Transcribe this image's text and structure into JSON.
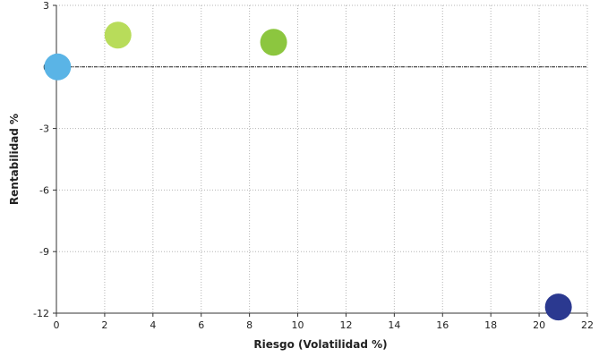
{
  "chart_data": {
    "type": "scatter",
    "title": "",
    "xlabel": "Riesgo (Volatilidad %)",
    "ylabel": "Rentabilidad %",
    "xlim": [
      0,
      22
    ],
    "ylim": [
      -12,
      3
    ],
    "x_ticks": [
      "0",
      "2",
      "4",
      "6",
      "8",
      "10",
      "12",
      "14",
      "16",
      "18",
      "20",
      "22"
    ],
    "y_ticks": [
      "3",
      "0",
      "-3",
      "-6",
      "-9",
      "-12"
    ],
    "grid": true,
    "zero_line": true,
    "legend": "none",
    "points": [
      {
        "x": 0.05,
        "y": 0.0,
        "color": "#5ab4e6"
      },
      {
        "x": 2.55,
        "y": 1.55,
        "color": "#b8dc5a"
      },
      {
        "x": 9.0,
        "y": 1.2,
        "color": "#8cc63f"
      },
      {
        "x": 20.8,
        "y": -11.7,
        "color": "#2b3990"
      }
    ]
  }
}
